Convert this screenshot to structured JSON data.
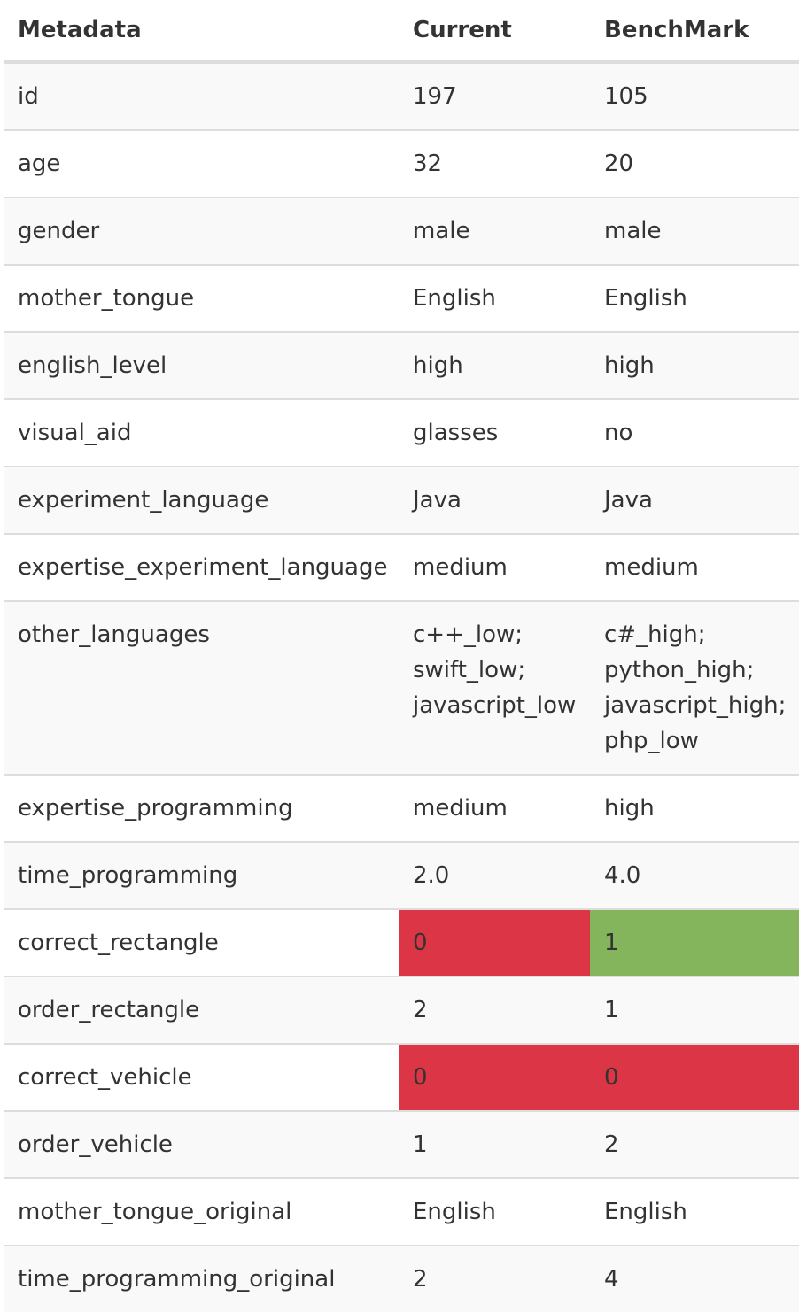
{
  "header": {
    "metadata": "Metadata",
    "current": "Current",
    "benchmark": "BenchMark"
  },
  "status_colors": {
    "mismatch": "#dc3545",
    "match": "#84b45c"
  },
  "rows": [
    {
      "key": "id",
      "current": "197",
      "benchmark": "105"
    },
    {
      "key": "age",
      "current": "32",
      "benchmark": "20"
    },
    {
      "key": "gender",
      "current": "male",
      "benchmark": "male"
    },
    {
      "key": "mother_tongue",
      "current": "English",
      "benchmark": "English"
    },
    {
      "key": "english_level",
      "current": "high",
      "benchmark": "high"
    },
    {
      "key": "visual_aid",
      "current": "glasses",
      "benchmark": "no"
    },
    {
      "key": "experiment_language",
      "current": "Java",
      "benchmark": "Java"
    },
    {
      "key": "expertise_experiment_language",
      "current": "medium",
      "benchmark": "medium"
    },
    {
      "key": "other_languages",
      "current": [
        "c++_low;",
        "swift_low;",
        "javascript_low"
      ],
      "benchmark": [
        "c#_high;",
        "python_high;",
        "javascript_high;",
        "php_low"
      ]
    },
    {
      "key": "expertise_programming",
      "current": "medium",
      "benchmark": "high"
    },
    {
      "key": "time_programming",
      "current": "2.0",
      "benchmark": "4.0"
    },
    {
      "key": "correct_rectangle",
      "current": "0",
      "benchmark": "1",
      "current_status": "mismatch",
      "benchmark_status": "match"
    },
    {
      "key": "order_rectangle",
      "current": "2",
      "benchmark": "1"
    },
    {
      "key": "correct_vehicle",
      "current": "0",
      "benchmark": "0",
      "current_status": "mismatch",
      "benchmark_status": "mismatch"
    },
    {
      "key": "order_vehicle",
      "current": "1",
      "benchmark": "2"
    },
    {
      "key": "mother_tongue_original",
      "current": "English",
      "benchmark": "English"
    },
    {
      "key": "time_programming_original",
      "current": "2",
      "benchmark": "4"
    }
  ]
}
